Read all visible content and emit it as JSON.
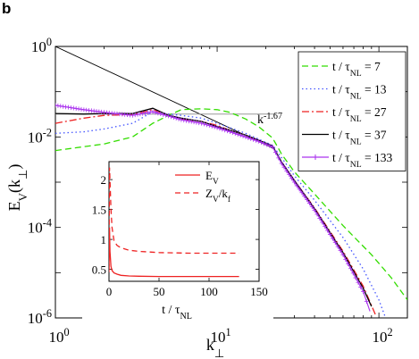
{
  "panel_label": "b",
  "chart_data": [
    {
      "type": "line",
      "xscale": "log",
      "yscale": "log",
      "xlim": [
        1,
        150
      ],
      "ylim": [
        1e-06,
        1
      ],
      "xlabel": {
        "main": "k",
        "sub": "⊥"
      },
      "ylabel": {
        "main": "E",
        "sub": "V",
        "rest": "(k",
        "sub2": "⊥",
        "close": ")"
      },
      "x_ticks": [
        {
          "value": 1,
          "base": "10",
          "exp": "0"
        },
        {
          "value": 10,
          "base": "10",
          "exp": "1"
        },
        {
          "value": 100,
          "base": "10",
          "exp": "2"
        }
      ],
      "y_ticks": [
        {
          "value": 1,
          "base": "10",
          "exp": "0"
        },
        {
          "value": 0.01,
          "base": "10",
          "exp": "-2"
        },
        {
          "value": 0.0001,
          "base": "10",
          "exp": "-4"
        },
        {
          "value": 1e-06,
          "base": "10",
          "exp": "-6"
        }
      ],
      "legend_position": "top-right",
      "series": [
        {
          "name": {
            "pre": "t / τ",
            "sub": "NL",
            "post": " = 7"
          },
          "color": "#33dd00",
          "dash": "7,4",
          "marker": "none",
          "x": [
            1,
            2,
            3,
            4,
            5,
            6,
            8,
            10,
            12,
            15,
            18,
            22,
            25,
            30,
            40,
            60,
            90,
            120,
            150
          ],
          "y": [
            0.005,
            0.007,
            0.01,
            0.02,
            0.03,
            0.04,
            0.042,
            0.04,
            0.035,
            0.025,
            0.017,
            0.0095,
            0.0042,
            0.0017,
            0.00055,
            0.00011,
            2.5e-05,
            7.5e-06,
            2.5e-06
          ]
        },
        {
          "name": {
            "pre": "t / τ",
            "sub": "NL",
            "post": " = 13"
          },
          "color": "#4455ff",
          "dash": "1.5,3",
          "marker": "none",
          "x": [
            1,
            1.5,
            2,
            3,
            4,
            5,
            6,
            8,
            10,
            12,
            15,
            18,
            22,
            25,
            30,
            40,
            60,
            80,
            100,
            110
          ],
          "y": [
            0.012,
            0.013,
            0.015,
            0.02,
            0.036,
            0.032,
            0.03,
            0.026,
            0.02,
            0.016,
            0.012,
            0.009,
            0.0065,
            0.0035,
            0.0014,
            0.0004,
            6e-05,
            1.2e-05,
            2.5e-06,
            1e-06
          ]
        },
        {
          "name": {
            "pre": "t / τ",
            "sub": "NL",
            "post": " = 27"
          },
          "color": "#ee2222",
          "dash": "8,3,2,3",
          "marker": "none",
          "x": [
            1,
            1.5,
            2,
            3,
            4,
            5,
            6,
            8,
            10,
            12,
            15,
            18,
            22,
            25,
            30,
            40,
            60,
            80,
            95
          ],
          "y": [
            0.02,
            0.026,
            0.03,
            0.031,
            0.04,
            0.03,
            0.025,
            0.022,
            0.018,
            0.014,
            0.011,
            0.008,
            0.006,
            0.0028,
            0.0011,
            0.00027,
            3e-05,
            5e-06,
            1.2e-06
          ]
        },
        {
          "name": {
            "pre": "t / τ",
            "sub": "NL",
            "post": " = 37"
          },
          "color": "#000000",
          "dash": "",
          "marker": "none",
          "x": [
            1,
            1.5,
            2,
            3,
            4,
            5,
            6,
            8,
            10,
            12,
            15,
            18,
            22,
            25,
            30,
            40,
            60,
            80,
            90
          ],
          "y": [
            0.033,
            0.032,
            0.033,
            0.033,
            0.043,
            0.03,
            0.026,
            0.022,
            0.017,
            0.014,
            0.011,
            0.0085,
            0.0063,
            0.0028,
            0.0011,
            0.00026,
            2.8e-05,
            4.5e-06,
            1.8e-06
          ]
        },
        {
          "name": {
            "pre": "t / τ",
            "sub": "NL",
            "post": " = 133"
          },
          "color": "#aa33ee",
          "dash": "",
          "marker": "plus",
          "x": [
            1,
            1.5,
            2,
            3,
            4,
            5,
            6,
            8,
            10,
            12,
            15,
            18,
            22,
            25,
            30,
            40,
            60,
            80,
            88
          ],
          "y": [
            0.05,
            0.04,
            0.035,
            0.03,
            0.036,
            0.029,
            0.024,
            0.02,
            0.016,
            0.013,
            0.01,
            0.008,
            0.006,
            0.0026,
            0.001,
            0.00024,
            2.5e-05,
            3.8e-06,
            1.4e-06
          ]
        }
      ],
      "reference_lines": [
        {
          "label": "k",
          "exp": "-1.67",
          "color": "#000000",
          "x": [
            1,
            22
          ],
          "y": [
            1,
            0.0057
          ]
        },
        {
          "label": "",
          "color": "#999999",
          "x": [
            1,
            23
          ],
          "y": [
            0.032,
            0.032
          ]
        }
      ]
    },
    {
      "type": "line",
      "inset": true,
      "xlim": [
        0,
        150
      ],
      "ylim": [
        0.3,
        2.3
      ],
      "xlabel": {
        "main": "t / τ",
        "sub": "NL"
      },
      "x_ticks": [
        0,
        50,
        100,
        150
      ],
      "y_ticks": [
        0.5,
        1,
        1.5,
        2
      ],
      "legend_position": "top-right",
      "series": [
        {
          "name": {
            "pre": "E",
            "sub": "V",
            "post": ""
          },
          "color": "#ee2222",
          "dash": "",
          "x": [
            0,
            0.5,
            1,
            2,
            3,
            5,
            8,
            12,
            20,
            30,
            50,
            80,
            110,
            130
          ],
          "y": [
            0.45,
            1.2,
            0.8,
            0.55,
            0.48,
            0.44,
            0.42,
            0.4,
            0.39,
            0.385,
            0.38,
            0.38,
            0.38,
            0.38
          ]
        },
        {
          "name": {
            "pre": "Z",
            "sub": "V",
            "post": "/k",
            "sub2": "f"
          },
          "color": "#ee2222",
          "dash": "6,4",
          "x": [
            0,
            0.5,
            1,
            2,
            3,
            5,
            8,
            12,
            20,
            30,
            50,
            80,
            110,
            130
          ],
          "y": [
            0.5,
            2.2,
            2.0,
            1.5,
            1.2,
            0.98,
            0.9,
            0.86,
            0.82,
            0.8,
            0.78,
            0.77,
            0.77,
            0.77
          ]
        }
      ]
    }
  ]
}
